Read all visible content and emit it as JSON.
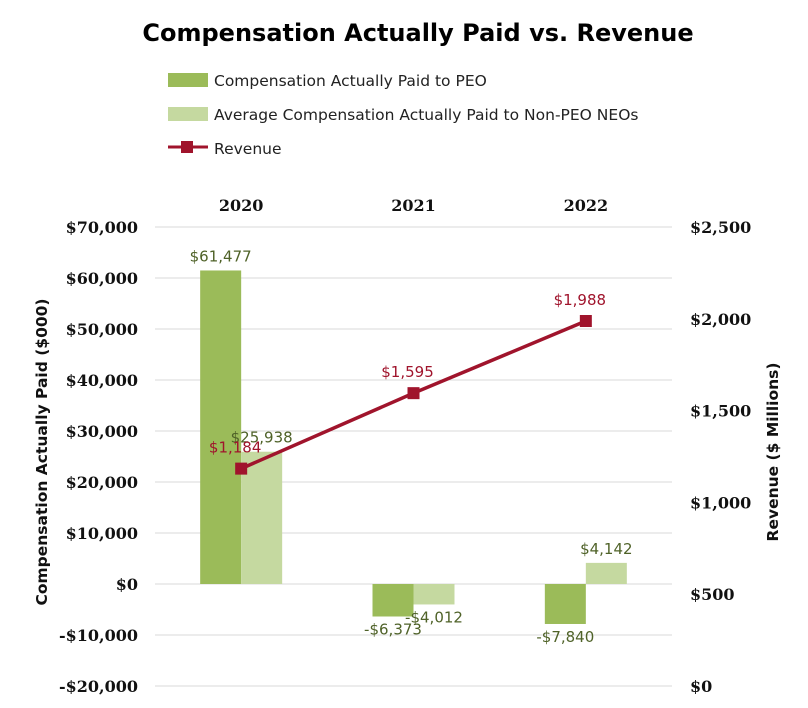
{
  "chart_data": {
    "type": "bar",
    "title": "Compensation Actually Paid vs. Revenue",
    "categories": [
      "2020",
      "2021",
      "2022"
    ],
    "series": [
      {
        "name": "Compensation Actually Paid to PEO",
        "kind": "bar",
        "axis": "left",
        "color": "#9BBB59",
        "values": [
          61477,
          -6373,
          -7840
        ],
        "labels": [
          "$61,477",
          "-$6,373",
          "-$7,840"
        ]
      },
      {
        "name": "Average Compensation Actually Paid to Non-PEO NEOs",
        "kind": "bar",
        "axis": "left",
        "color": "#C5D9A0",
        "values": [
          25938,
          -4012,
          4142
        ],
        "labels": [
          "$25,938",
          "-$4,012",
          "$4,142"
        ]
      },
      {
        "name": "Revenue",
        "kind": "line",
        "axis": "right",
        "color": "#A0142C",
        "values": [
          1184,
          1595,
          1988
        ],
        "labels": [
          "$1,184",
          "$1,595",
          "$1,988"
        ]
      }
    ],
    "left_axis": {
      "label": "Compensation Actually Paid ($000)",
      "ylim": [
        -20000,
        70000
      ],
      "ticks": [
        -20000,
        -10000,
        0,
        10000,
        20000,
        30000,
        40000,
        50000,
        60000,
        70000
      ],
      "tick_labels": [
        "-$20,000",
        "-$10,000",
        "$0",
        "$10,000",
        "$20,000",
        "$30,000",
        "$40,000",
        "$50,000",
        "$60,000",
        "$70,000"
      ]
    },
    "right_axis": {
      "label": "Revenue ($ Millions)",
      "ylim": [
        0,
        2500
      ],
      "ticks": [
        0,
        500,
        1000,
        1500,
        2000,
        2500
      ],
      "tick_labels": [
        "$0",
        "$500",
        "$1,000",
        "$1,500",
        "$2,000",
        "$2,500"
      ]
    },
    "grid": true,
    "legend_position": "top-left",
    "label_colors": {
      "bar": "#4F6228",
      "line": "#A0142C"
    },
    "grid_color": "#D9D9D9"
  }
}
